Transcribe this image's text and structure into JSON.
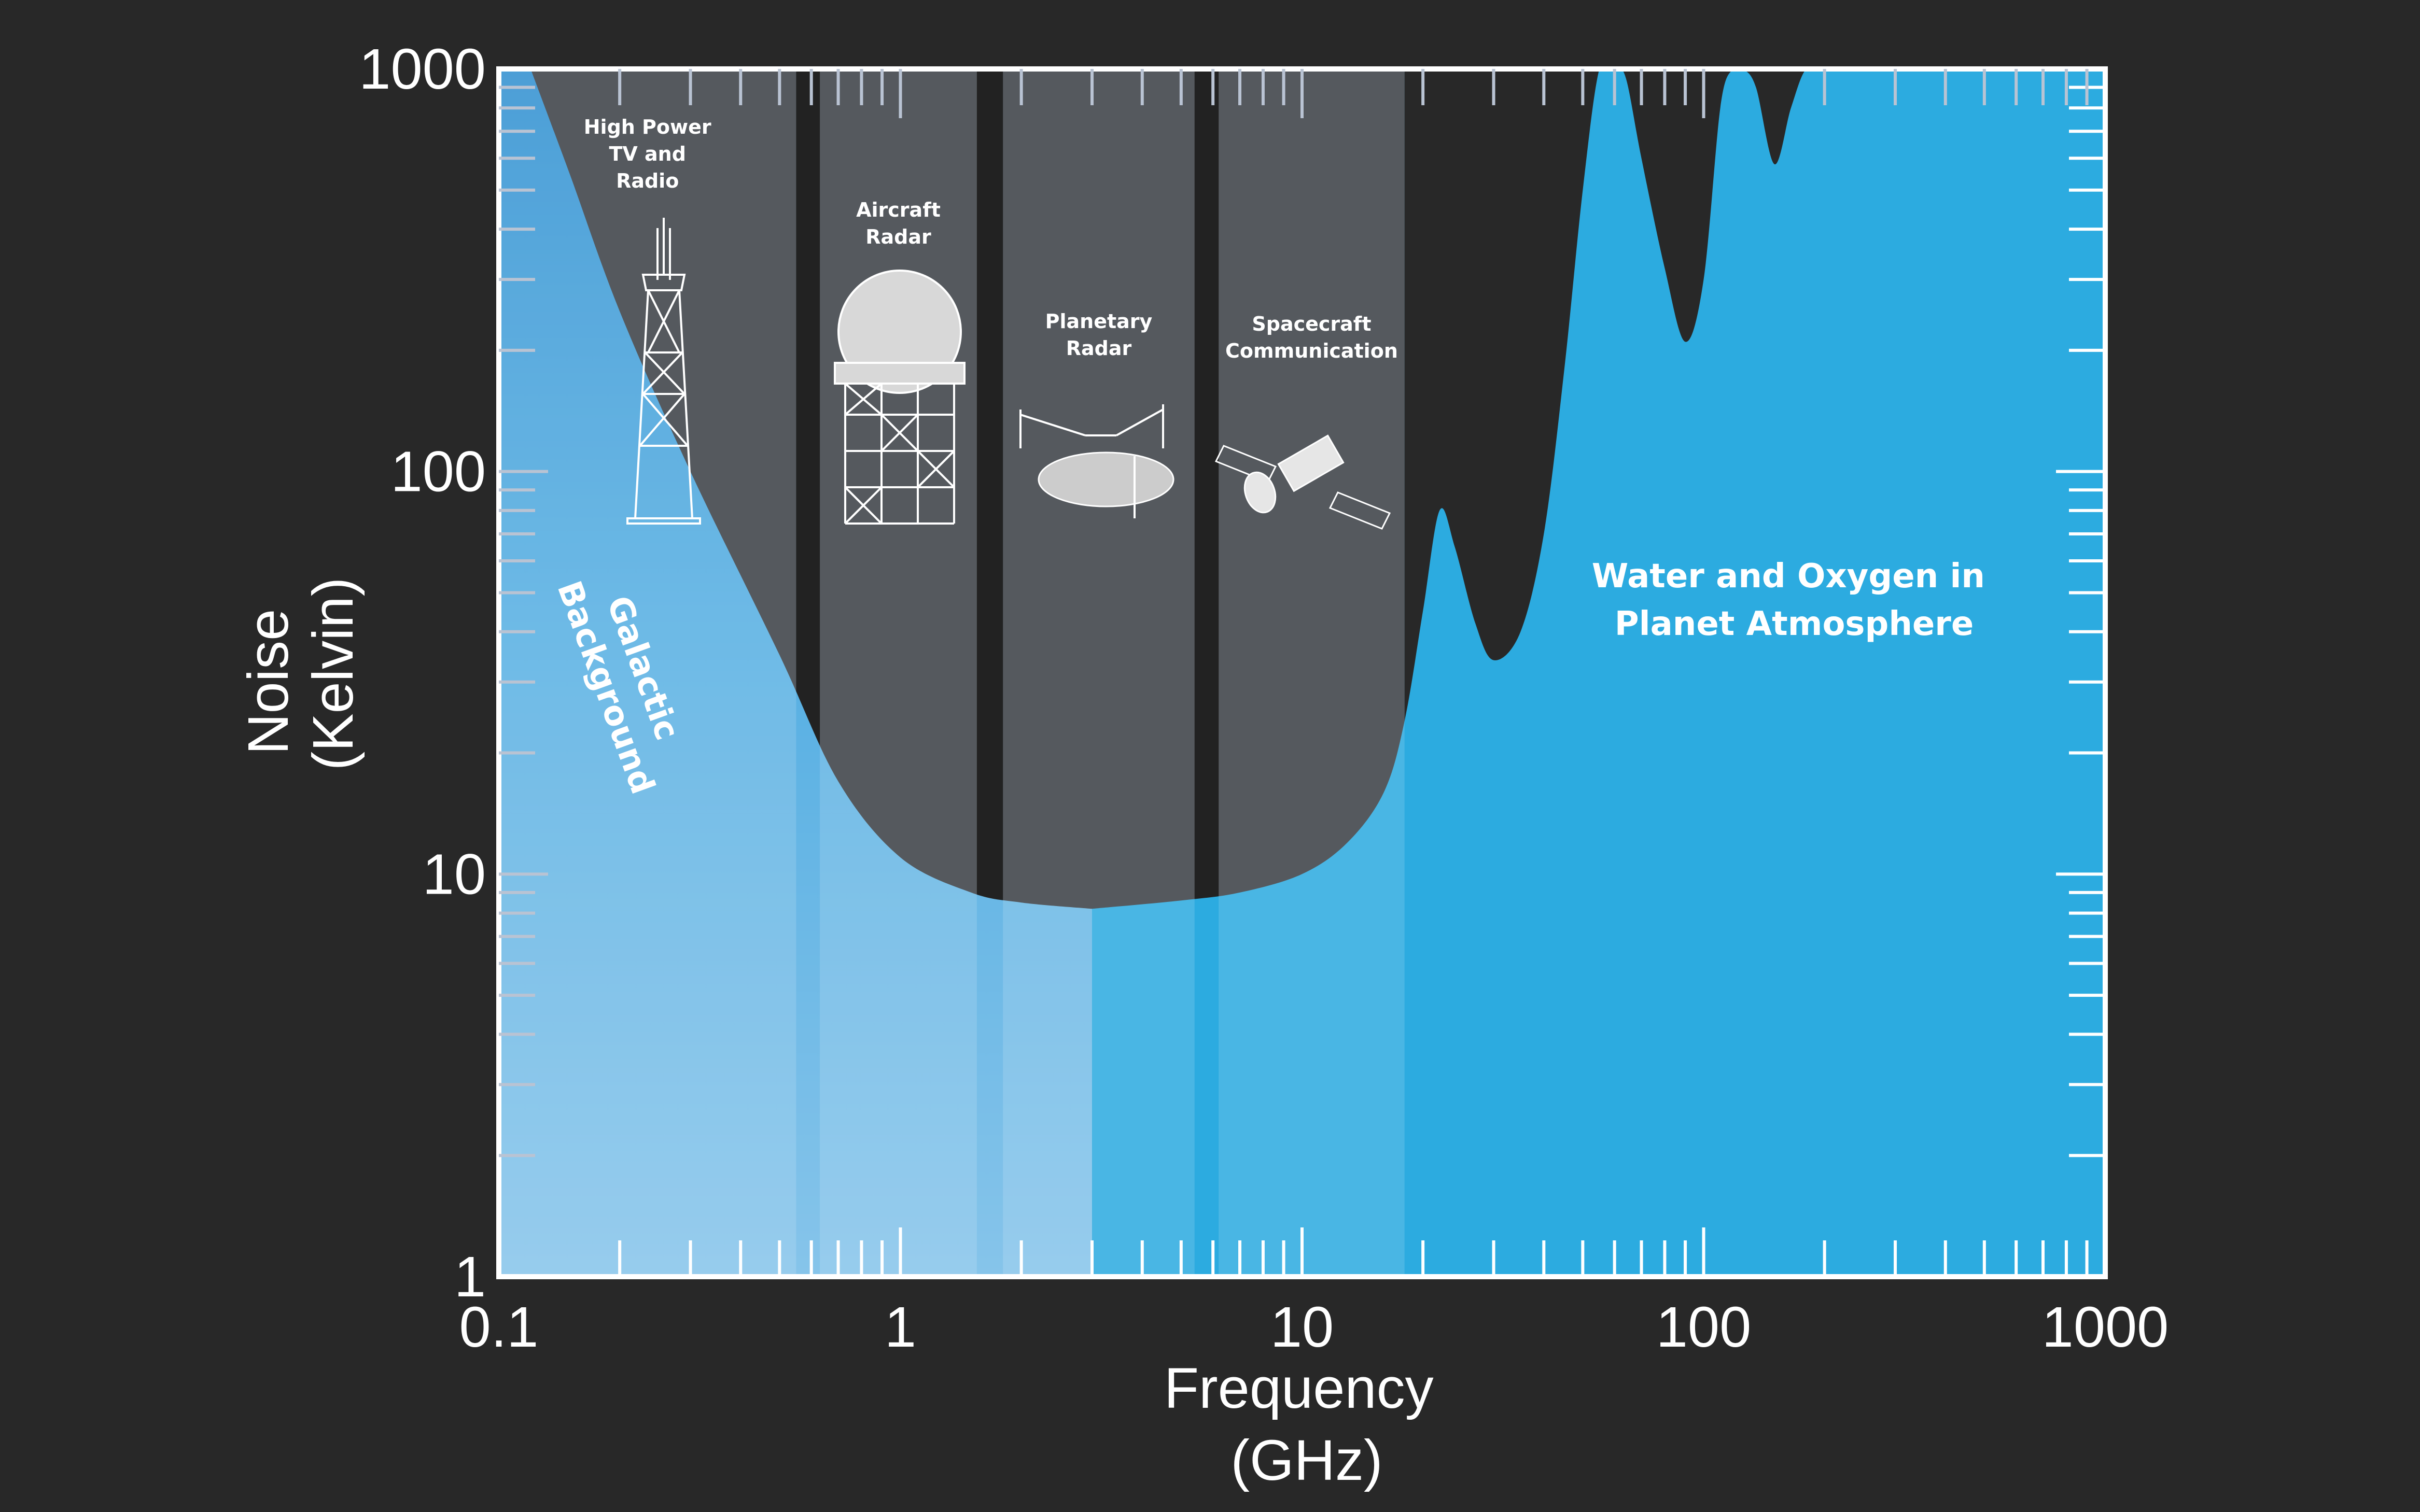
{
  "chart_data": {
    "type": "area",
    "xlabel_lines": [
      "Frequency",
      "(GHz)"
    ],
    "ylabel_lines": [
      "Noise",
      "(Kelvin)"
    ],
    "x_scale": "log",
    "y_scale": "log",
    "xlim": [
      0.1,
      1000
    ],
    "ylim": [
      1,
      1000
    ],
    "x_ticks": [
      {
        "value": 0.1,
        "label": "0.1"
      },
      {
        "value": 1,
        "label": "1"
      },
      {
        "value": 10,
        "label": "10"
      },
      {
        "value": 100,
        "label": "100"
      },
      {
        "value": 1000,
        "label": "1000"
      }
    ],
    "y_ticks": [
      {
        "value": 1,
        "label": "1"
      },
      {
        "value": 10,
        "label": "10"
      },
      {
        "value": 100,
        "label": "100"
      },
      {
        "value": 1000,
        "label": "1000"
      }
    ],
    "galactic_background": {
      "label_lines": [
        "Galactic",
        "Background"
      ],
      "x": [
        0.12,
        0.15,
        0.2,
        0.3,
        0.5,
        0.7,
        1.0,
        1.5,
        2.0,
        3.0
      ],
      "y": [
        1000,
        550,
        250,
        100,
        35,
        17,
        11,
        9,
        8.5,
        8.2
      ]
    },
    "atmosphere": {
      "label_lines": [
        "Water and Oxygen in",
        "Planet Atmosphere"
      ],
      "x": [
        3,
        5,
        7,
        10,
        13,
        16,
        18,
        20,
        22,
        24,
        27,
        30,
        35,
        40,
        45,
        50,
        55,
        60,
        64,
        70,
        80,
        90,
        100,
        110,
        118,
        125,
        135,
        150,
        165,
        180,
        200,
        300,
        500,
        1000
      ],
      "y": [
        8.2,
        8.6,
        9,
        10,
        12,
        16,
        24,
        45,
        80,
        65,
        42,
        34,
        40,
        70,
        180,
        500,
        1000,
        1000,
        950,
        600,
        320,
        210,
        300,
        800,
        1000,
        1000,
        900,
        580,
        800,
        1000,
        1000,
        1000,
        1000,
        1000
      ]
    },
    "bands": [
      {
        "label_lines": [
          "High Power",
          "TV and",
          "Radio"
        ],
        "x_start": 0.1,
        "x_end": 0.55,
        "icon": "radio-tower-icon"
      },
      {
        "label_lines": [
          "Aircraft",
          "Radar"
        ],
        "x_start": 0.63,
        "x_end": 1.55,
        "icon": "radar-dome-icon"
      },
      {
        "label_lines": [
          "Planetary",
          "Radar"
        ],
        "x_start": 1.8,
        "x_end": 5.4,
        "icon": "radio-telescope-icon"
      },
      {
        "label_lines": [
          "Spacecraft",
          "Communication"
        ],
        "x_start": 6.2,
        "x_end": 18,
        "icon": "spacecraft-icon"
      }
    ],
    "colors": {
      "background": "#282828",
      "sky": "#2cabe0",
      "band_shade": "#3a3e44",
      "band_gap": "#222222",
      "axis": "#ffffff",
      "tick_top": "#b9c3d3"
    }
  }
}
